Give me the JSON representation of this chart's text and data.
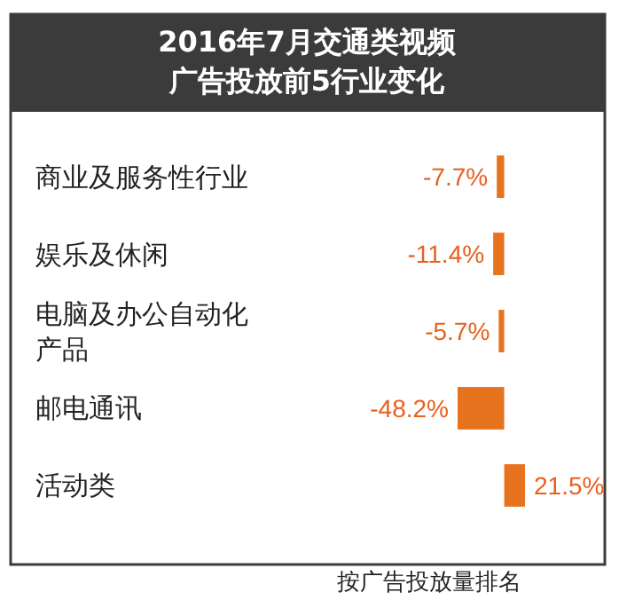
{
  "chart_data": {
    "type": "bar",
    "orientation": "horizontal",
    "title": "2016年7月交通类视频广告投放前5行业变化",
    "categories": [
      "商业及服务性行业",
      "娱乐及休闲",
      "电脑及办公自动化产品",
      "邮电通讯",
      "活动类"
    ],
    "values": [
      -7.7,
      -11.4,
      -5.7,
      -48.2,
      21.5
    ],
    "color": "#e8731f",
    "value_labels": [
      "-7.7%",
      "-11.4%",
      "-5.7%",
      "-48.2%",
      "21.5%"
    ],
    "annotations": [
      "按广告投放量排名"
    ]
  }
}
